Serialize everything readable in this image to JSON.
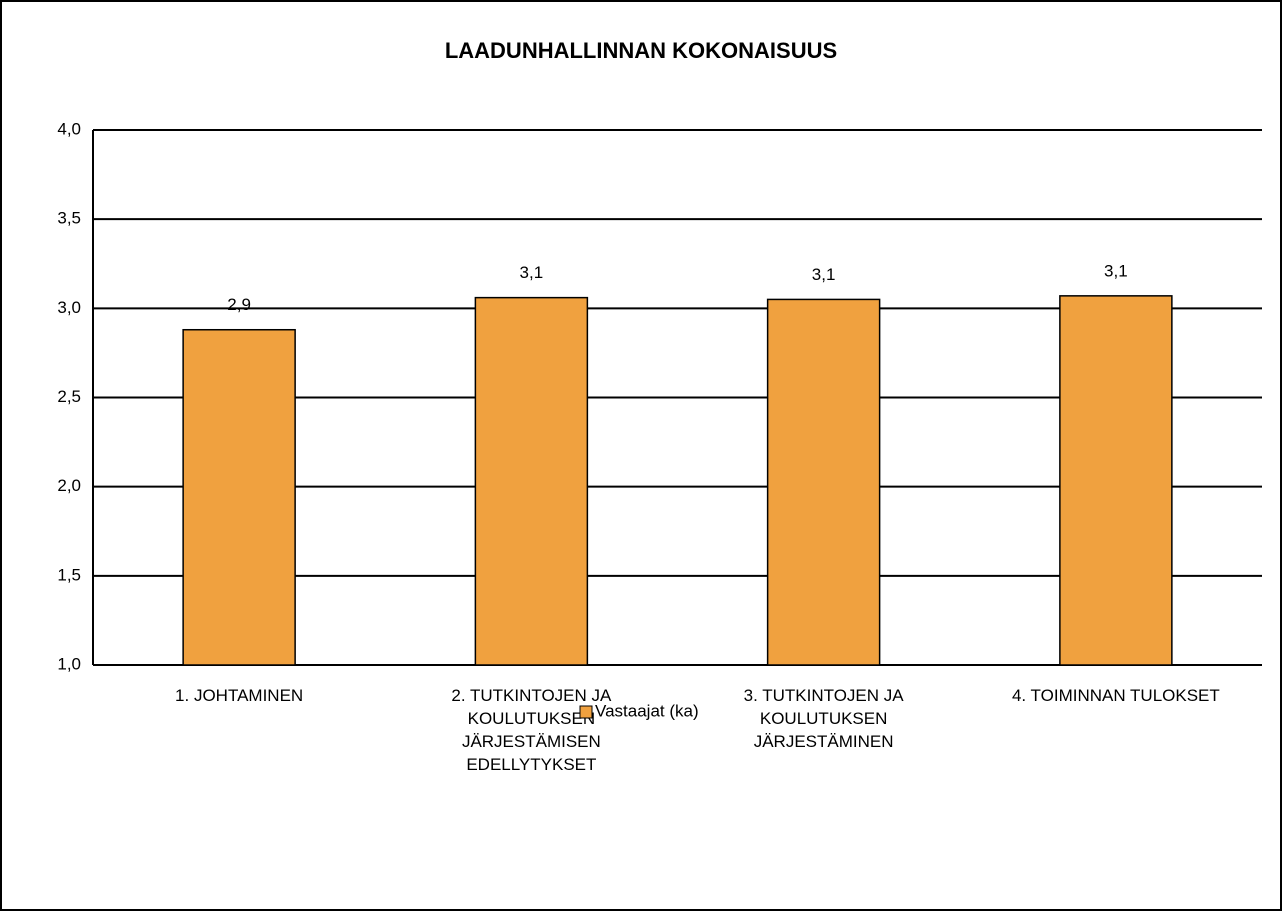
{
  "chart_data": {
    "type": "bar",
    "title": "LAADUNHALLINNAN KOKONAISUUS",
    "categories": [
      "1. JOHTAMINEN",
      "2. TUTKINTOJEN JA KOULUTUKSEN JÄRJESTÄMISEN EDELLYTYKSET",
      "3. TUTKINTOJEN JA KOULUTUKSEN JÄRJESTÄMINEN",
      "4. TOIMINNAN TULOKSET"
    ],
    "series": [
      {
        "name": "Vastaajat (ka)",
        "color": "#f0a13f",
        "values": [
          2.88,
          3.06,
          3.05,
          3.07
        ],
        "value_labels": [
          "2,9",
          "3,1",
          "3,1",
          "3,1"
        ]
      }
    ],
    "ylim": [
      1,
      4
    ],
    "yticks": [
      {
        "value": 1,
        "label": "1,0"
      },
      {
        "value": 1.5,
        "label": "1,5"
      },
      {
        "value": 2,
        "label": "2,0"
      },
      {
        "value": 2.5,
        "label": "2,5"
      },
      {
        "value": 3,
        "label": "3,0"
      },
      {
        "value": 3.5,
        "label": "3,5"
      },
      {
        "value": 4,
        "label": "4,0"
      }
    ],
    "grid": true,
    "legend": "bottom"
  }
}
